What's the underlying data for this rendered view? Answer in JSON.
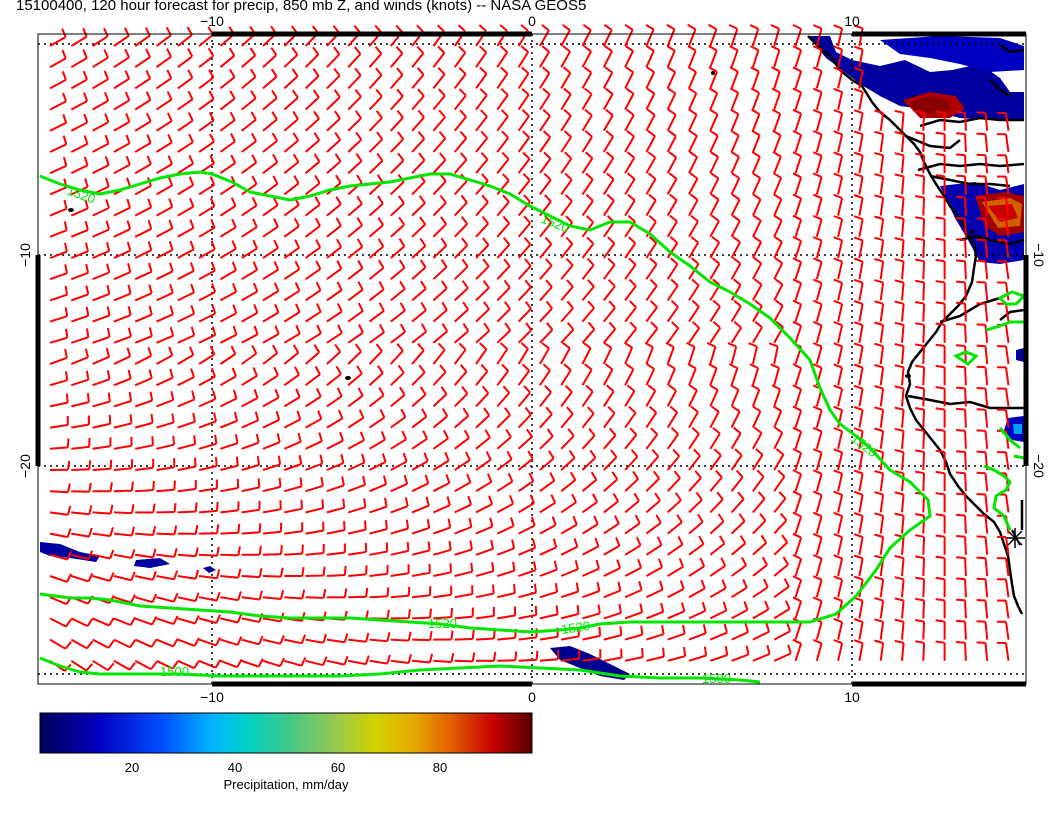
{
  "title": "15100400, 120 hour forecast for precip, 850 mb Z, and winds (knots) -- NASA GEOS5",
  "lon_ticks_top": [
    "−10",
    "0",
    "10"
  ],
  "lon_ticks_bottom": [
    "−10",
    "0",
    "10"
  ],
  "lat_ticks_left": [
    "−10",
    "−20"
  ],
  "lat_ticks_right": [
    "−10",
    "−20"
  ],
  "contour_labels": [
    "1520",
    "1520",
    "1520",
    "1520",
    "1520",
    "1500",
    "1500"
  ],
  "colorbar": {
    "label": "Precipitation, mm/day",
    "ticks": [
      "20",
      "40",
      "60",
      "80"
    ],
    "colors": [
      "#00006e",
      "#0000c8",
      "#0a50ff",
      "#00a0ff",
      "#00d2d2",
      "#46c878",
      "#a0c83c",
      "#d2d200",
      "#e6a000",
      "#e05000",
      "#c80000",
      "#6e0000"
    ]
  },
  "colors": {
    "wind": "#ff0000",
    "contour": "#00e600",
    "coast": "#000000"
  }
}
